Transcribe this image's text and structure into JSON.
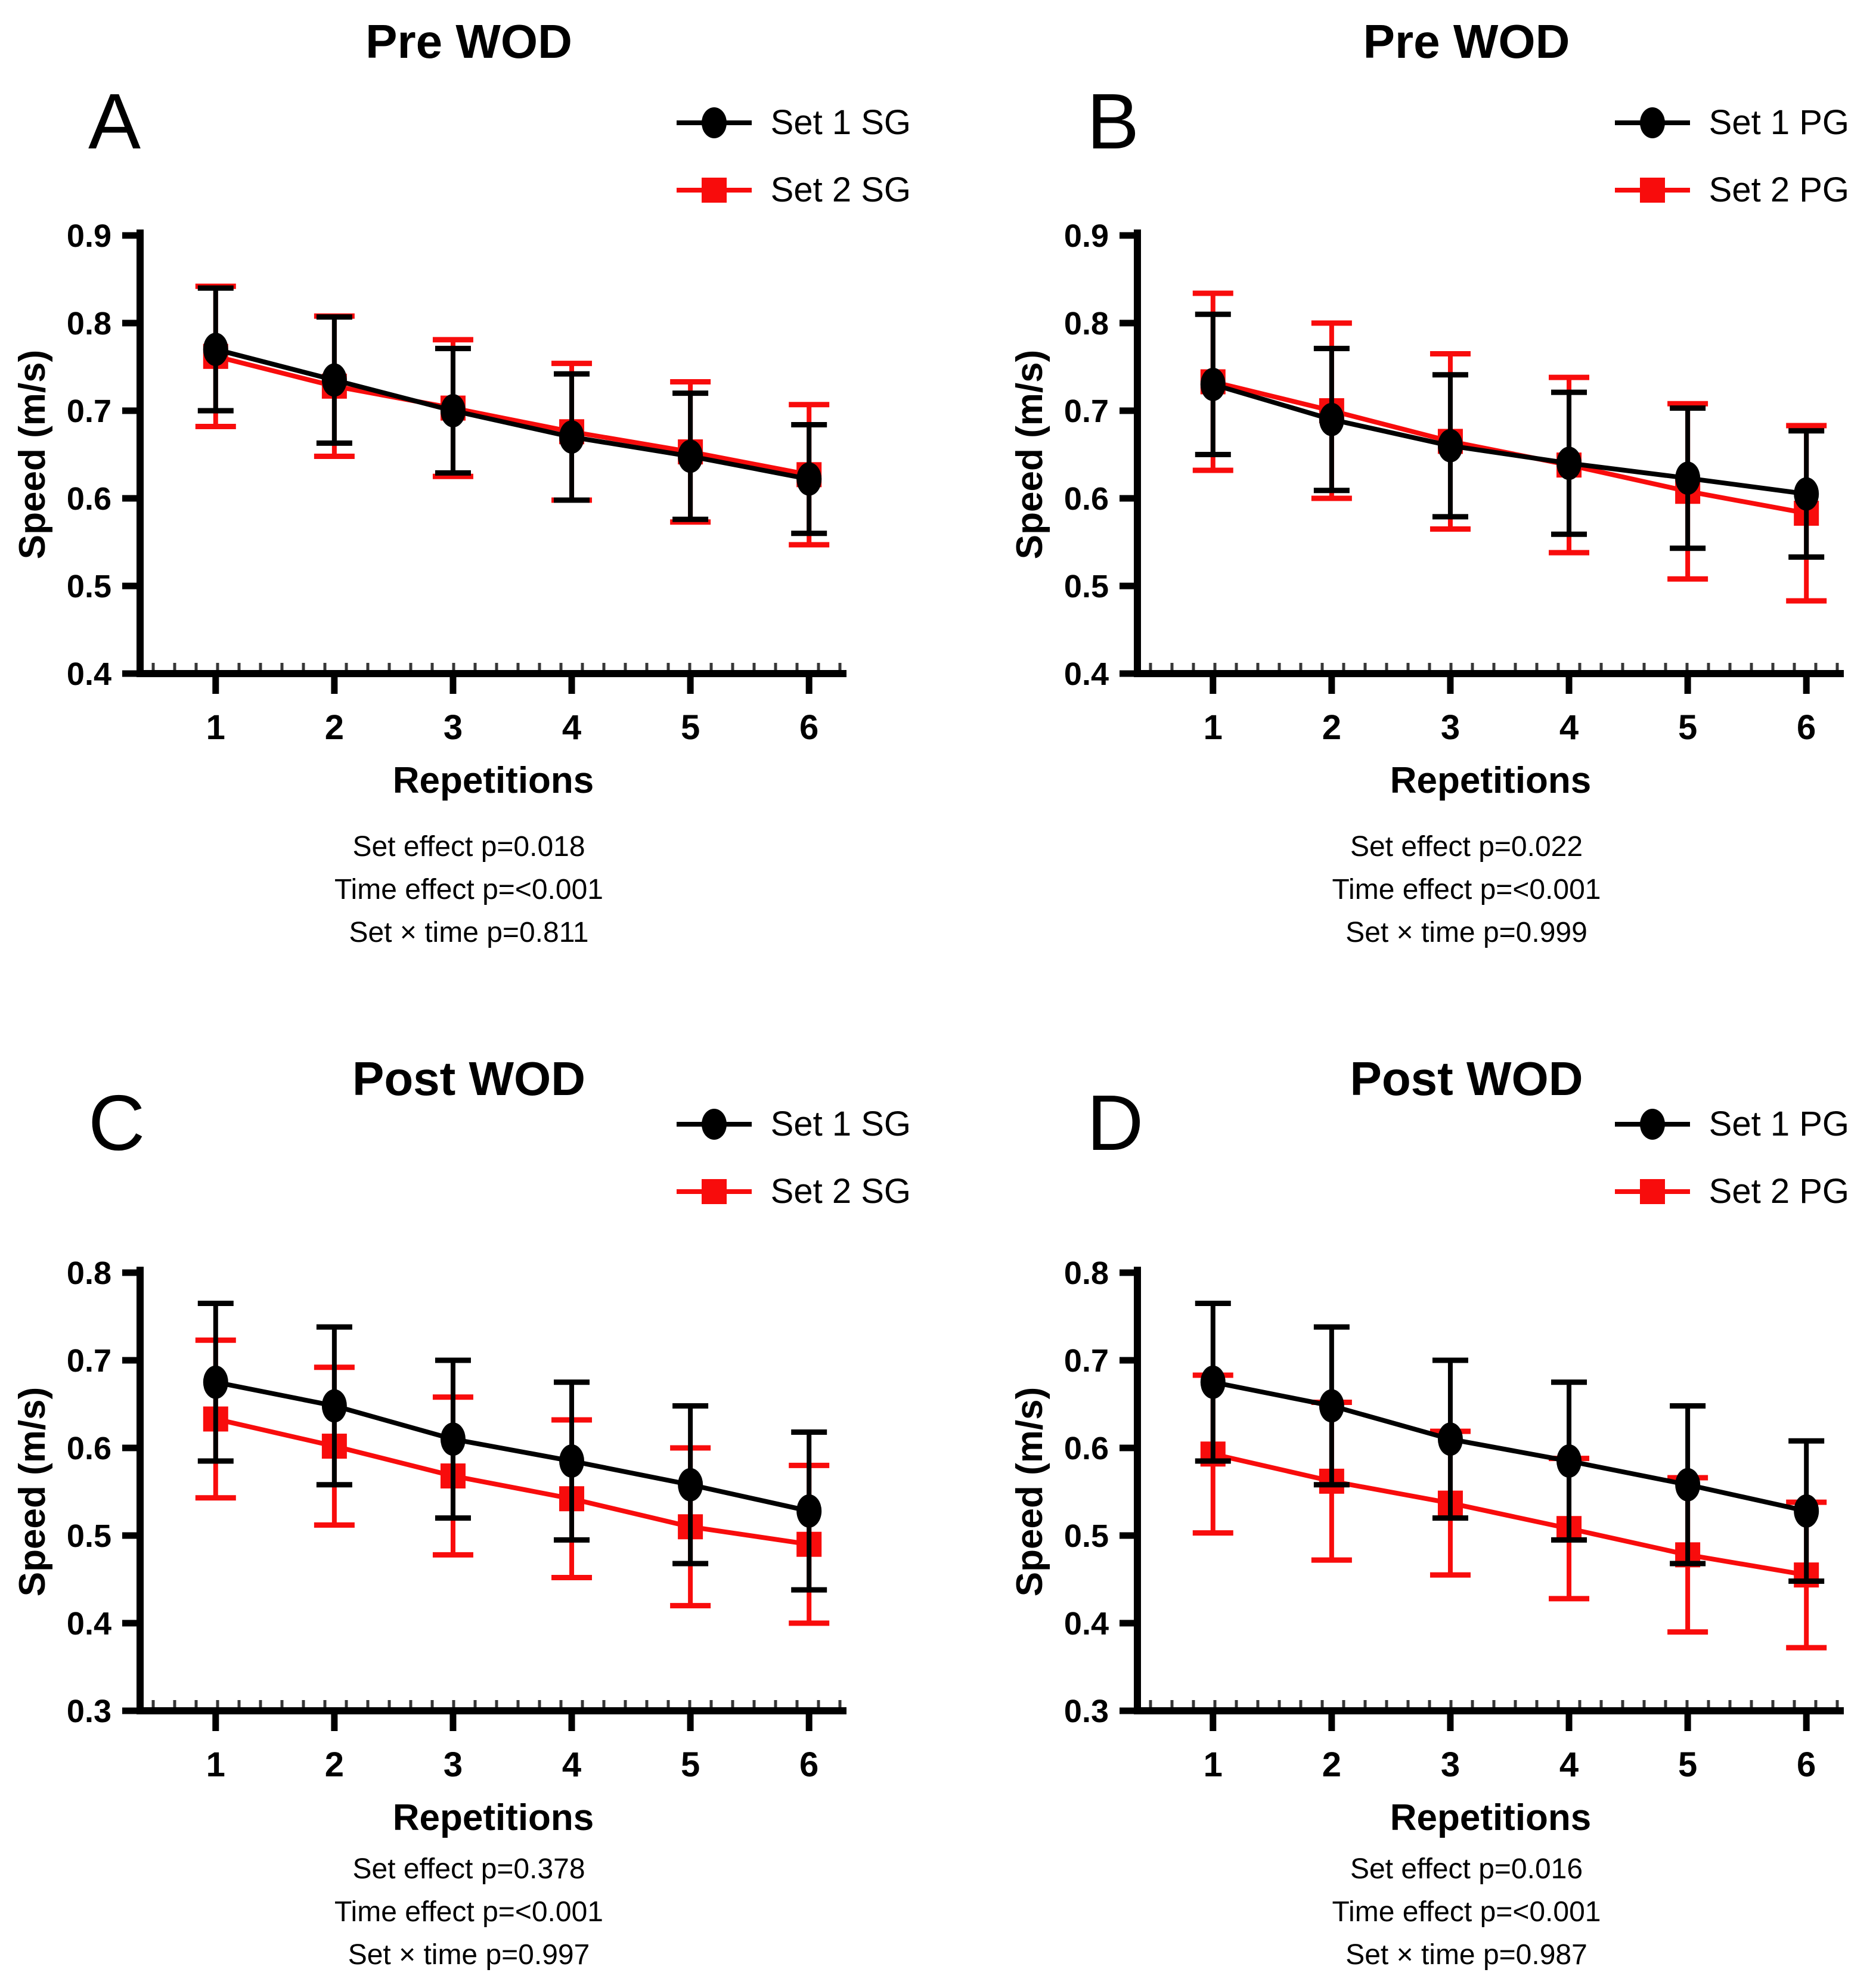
{
  "figure_title": "",
  "accent_colors": {
    "series1": "#000000",
    "series2": "#F80C0C"
  },
  "chart_data": [
    {
      "letter": "A",
      "title": "Pre WOD",
      "type": "line",
      "xlabel": "Repetitions",
      "ylabel": "Speed (m/s)",
      "x": [
        1,
        2,
        3,
        4,
        5,
        6
      ],
      "ylim": [
        0.4,
        0.9
      ],
      "yticks": [
        0.4,
        0.5,
        0.6,
        0.7,
        0.8,
        0.9
      ],
      "legend_position": "top-right",
      "grid": false,
      "series": [
        {
          "name": "Set 1 SG",
          "color": "#000000",
          "marker": "circle",
          "values": [
            0.77,
            0.735,
            0.7,
            0.67,
            0.648,
            0.622
          ],
          "errors": [
            0.07,
            0.072,
            0.071,
            0.072,
            0.072,
            0.062
          ]
        },
        {
          "name": "Set 2 SG",
          "color": "#F80C0C",
          "marker": "square",
          "values": [
            0.762,
            0.728,
            0.703,
            0.676,
            0.653,
            0.627
          ],
          "errors": [
            0.08,
            0.08,
            0.078,
            0.078,
            0.08,
            0.08
          ]
        }
      ],
      "stats": [
        "Set effect p=0.018",
        "Time effect p=<0.001",
        "Set × time p=0.811"
      ]
    },
    {
      "letter": "B",
      "title": "Pre WOD",
      "type": "line",
      "xlabel": "Repetitions",
      "ylabel": "Speed (m/s)",
      "x": [
        1,
        2,
        3,
        4,
        5,
        6
      ],
      "ylim": [
        0.4,
        0.9
      ],
      "yticks": [
        0.4,
        0.5,
        0.6,
        0.7,
        0.8,
        0.9
      ],
      "legend_position": "top-right",
      "grid": false,
      "series": [
        {
          "name": "Set 1 PG",
          "color": "#000000",
          "marker": "circle",
          "values": [
            0.73,
            0.69,
            0.66,
            0.64,
            0.623,
            0.605
          ],
          "errors": [
            0.08,
            0.081,
            0.081,
            0.081,
            0.08,
            0.072
          ]
        },
        {
          "name": "Set 2 PG",
          "color": "#F80C0C",
          "marker": "square",
          "values": [
            0.733,
            0.7,
            0.665,
            0.638,
            0.608,
            0.583
          ],
          "errors": [
            0.101,
            0.1,
            0.1,
            0.1,
            0.1,
            0.1
          ]
        }
      ],
      "stats": [
        "Set effect p=0.022",
        "Time effect p=<0.001",
        "Set × time p=0.999"
      ]
    },
    {
      "letter": "C",
      "title": "Post WOD",
      "type": "line",
      "xlabel": "Repetitions",
      "ylabel": "Speed (m/s)",
      "x": [
        1,
        2,
        3,
        4,
        5,
        6
      ],
      "ylim": [
        0.3,
        0.8
      ],
      "yticks": [
        0.3,
        0.4,
        0.5,
        0.6,
        0.7,
        0.8
      ],
      "legend_position": "top-right",
      "grid": false,
      "series": [
        {
          "name": "Set 1 SG",
          "color": "#000000",
          "marker": "circle",
          "values": [
            0.675,
            0.648,
            0.61,
            0.585,
            0.558,
            0.528
          ],
          "errors": [
            0.09,
            0.09,
            0.09,
            0.09,
            0.09,
            0.09
          ]
        },
        {
          "name": "Set 2 SG",
          "color": "#F80C0C",
          "marker": "square",
          "values": [
            0.633,
            0.602,
            0.568,
            0.542,
            0.51,
            0.49
          ],
          "errors": [
            0.09,
            0.09,
            0.09,
            0.09,
            0.09,
            0.09
          ]
        }
      ],
      "stats": [
        "Set effect p=0.378",
        "Time effect p=<0.001",
        "Set × time p=0.997"
      ]
    },
    {
      "letter": "D",
      "title": "Post WOD",
      "type": "line",
      "xlabel": "Repetitions",
      "ylabel": "Speed (m/s)",
      "x": [
        1,
        2,
        3,
        4,
        5,
        6
      ],
      "ylim": [
        0.3,
        0.8
      ],
      "yticks": [
        0.3,
        0.4,
        0.5,
        0.6,
        0.7,
        0.8
      ],
      "legend_position": "top-right",
      "grid": false,
      "series": [
        {
          "name": "Set 1 PG",
          "color": "#000000",
          "marker": "circle",
          "values": [
            0.675,
            0.648,
            0.61,
            0.585,
            0.558,
            0.528
          ],
          "errors": [
            0.09,
            0.09,
            0.09,
            0.09,
            0.09,
            0.08
          ]
        },
        {
          "name": "Set 2 PG",
          "color": "#F80C0C",
          "marker": "square",
          "values": [
            0.593,
            0.562,
            0.537,
            0.508,
            0.478,
            0.455
          ],
          "errors": [
            0.09,
            0.09,
            0.082,
            0.08,
            0.088,
            0.083
          ]
        }
      ],
      "stats": [
        "Set effect p=0.016",
        "Time effect p=<0.001",
        "Set × time p=0.987"
      ]
    }
  ]
}
